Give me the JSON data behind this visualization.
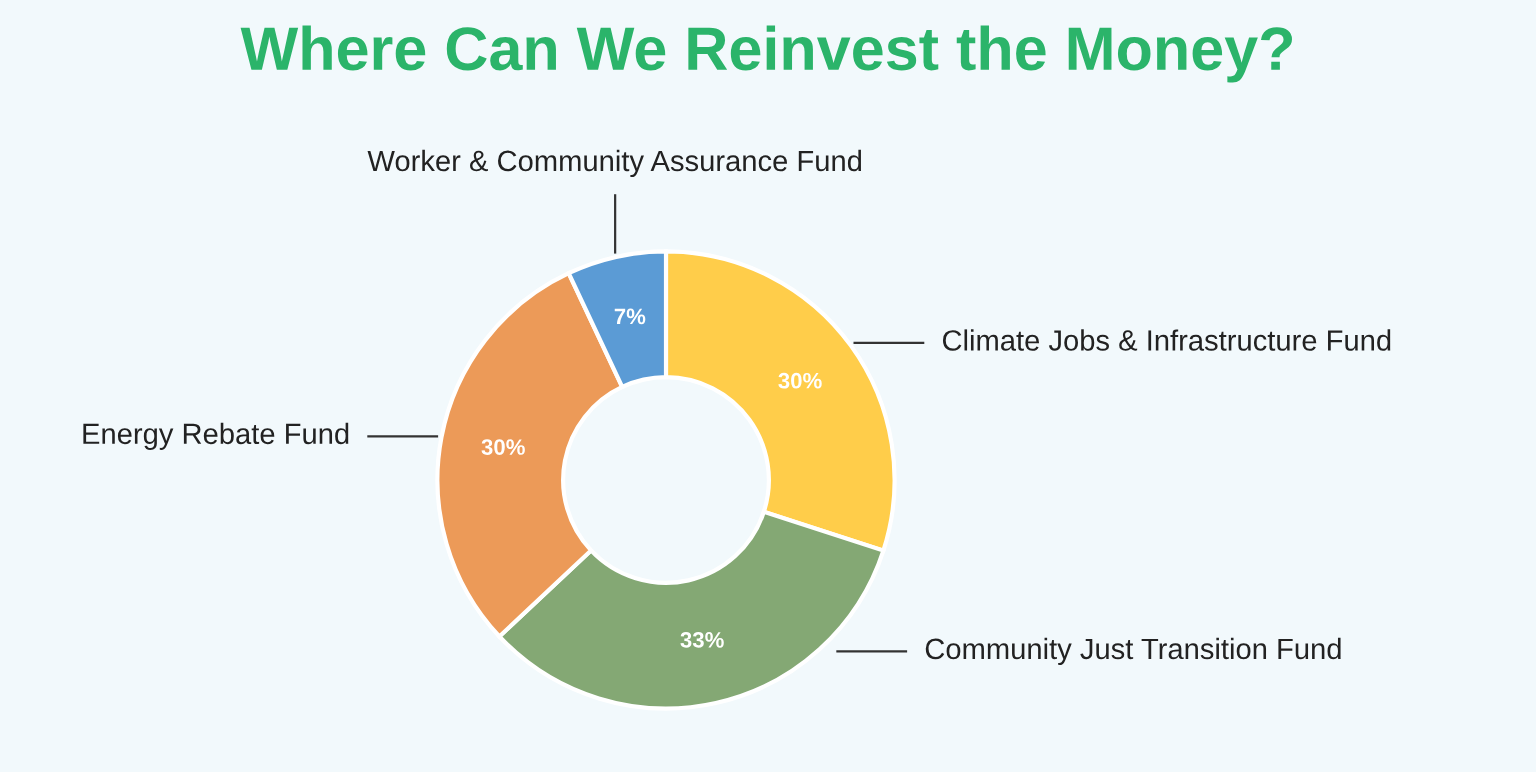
{
  "chart_data": {
    "type": "donut",
    "title": "Where Can We Reinvest the Money?",
    "categories": [
      "Climate Jobs & Infrastructure Fund",
      "Community Just Transition Fund",
      "Energy Rebate Fund",
      "Worker & Community Assurance Fund"
    ],
    "values": [
      30,
      33,
      30,
      7
    ],
    "colors": [
      "#ffcd4a",
      "#84a874",
      "#ec9a58",
      "#5b9bd5"
    ],
    "value_labels": [
      "30%",
      "33%",
      "30%",
      "7%"
    ]
  }
}
